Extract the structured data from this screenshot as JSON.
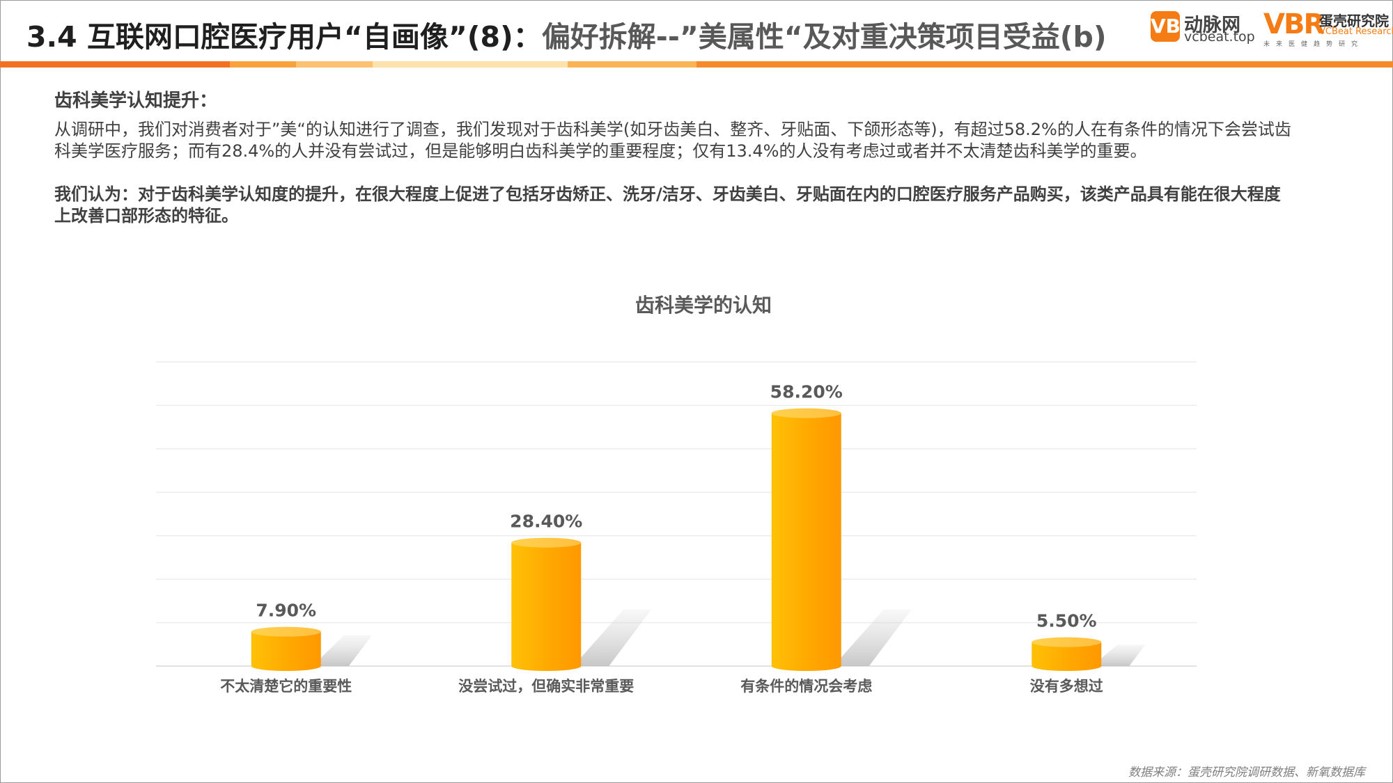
{
  "header": {
    "title_main": "3.4 互联网口腔医疗用户“自画像”(8)：",
    "title_sub": "偏好拆解--”美属性“及对重决策项目受益(b)"
  },
  "logos": {
    "vcbeat_mark": "VB",
    "vcbeat_name": "动脉网",
    "vcbeat_url": "vcbeat.top",
    "vbr_mark": "VBR",
    "vbr_name": "蛋壳研究院",
    "vbr_en": "VCBeat Research",
    "vbr_tagline": "未来医健趋势研究"
  },
  "content": {
    "heading": "齿科美学认知提升：",
    "paragraph1": "从调研中，我们对消费者对于”美“的认知进行了调查，我们发现对于齿科美学(如牙齿美白、整齐、牙贴面、下颌形态等)，有超过58.2%的人在有条件的情况下会尝试齿科美学医疗服务；而有28.4%的人并没有尝试过，但是能够明白齿科美学的重要程度；仅有13.4%的人没有考虑过或者并不太清楚齿科美学的重要。",
    "paragraph2": "我们认为：对于齿科美学认知度的提升，在很大程度上促进了包括牙齿矫正、洗牙/洁牙、牙齿美白、牙贴面在内的口腔医疗服务产品购买，该类产品具有能在很大程度上改善口部形态的特征。"
  },
  "chart_data": {
    "type": "bar",
    "title": "齿科美学的认知",
    "categories": [
      "不太清楚它的重要性",
      "没尝试过，但确实非常重要",
      "有条件的情况会考虑",
      "没有多想过"
    ],
    "values": [
      7.9,
      28.4,
      58.2,
      5.5
    ],
    "value_labels": [
      "7.90%",
      "28.40%",
      "58.20%",
      "5.50%"
    ],
    "ylim": [
      0,
      70
    ],
    "grid": true,
    "bar_color": "#ffa500"
  },
  "footer": {
    "source": "数据来源：蛋壳研究院调研数据、新氧数据库"
  },
  "colors": {
    "stripe": [
      "#f36f21",
      "#f9a13a",
      "#fdc271",
      "#fde3ab",
      "#fbb455",
      "#f58a2b"
    ]
  }
}
